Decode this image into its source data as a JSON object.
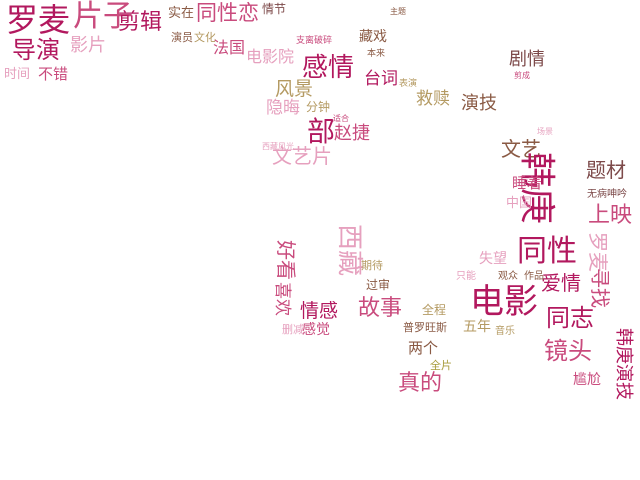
{
  "colors": {
    "magenta": "#b2185e",
    "rose": "#c94b7d",
    "pink": "#e6a0be",
    "brown": "#8a5a44",
    "tan": "#b49a62",
    "olive": "#a89c3c",
    "dark": "#7d4a4a"
  },
  "words": [
    {
      "text": "罗麦",
      "color": "magenta"
    },
    {
      "text": "片子",
      "color": "rose"
    },
    {
      "text": "剪辑",
      "color": "magenta"
    },
    {
      "text": "实在",
      "color": "brown"
    },
    {
      "text": "同性恋",
      "color": "rose"
    },
    {
      "text": "情节",
      "color": "dark"
    },
    {
      "text": "导演",
      "color": "magenta"
    },
    {
      "text": "影片",
      "color": "pink"
    },
    {
      "text": "演员",
      "color": "brown"
    },
    {
      "text": "文化",
      "color": "tan"
    },
    {
      "text": "法国",
      "color": "rose"
    },
    {
      "text": "电影院",
      "color": "pink"
    },
    {
      "text": "感情",
      "color": "magenta"
    },
    {
      "text": "藏戏",
      "color": "brown"
    },
    {
      "text": "剧情",
      "color": "dark"
    },
    {
      "text": "时间",
      "color": "pink"
    },
    {
      "text": "不错",
      "color": "rose"
    },
    {
      "text": "风景",
      "color": "tan"
    },
    {
      "text": "台词",
      "color": "magenta"
    },
    {
      "text": "救赎",
      "color": "tan"
    },
    {
      "text": "演技",
      "color": "brown"
    },
    {
      "text": "隐晦",
      "color": "pink"
    },
    {
      "text": "分钟",
      "color": "tan"
    },
    {
      "text": "部",
      "color": "magenta"
    },
    {
      "text": "赵捷",
      "color": "rose"
    },
    {
      "text": "文艺",
      "color": "brown"
    },
    {
      "text": "文艺片",
      "color": "pink"
    },
    {
      "text": "韩庚",
      "color": "magenta"
    },
    {
      "text": "题材",
      "color": "dark"
    },
    {
      "text": "睡着",
      "color": "rose"
    },
    {
      "text": "中国",
      "color": "pink"
    },
    {
      "text": "上映",
      "color": "rose"
    },
    {
      "text": "无病呻吟",
      "color": "dark"
    },
    {
      "text": "西藏",
      "color": "pink"
    },
    {
      "text": "好看",
      "color": "rose"
    },
    {
      "text": "同性",
      "color": "magenta"
    },
    {
      "text": "罗麦",
      "color": "pink"
    },
    {
      "text": "失望",
      "color": "pink"
    },
    {
      "text": "期待",
      "color": "tan"
    },
    {
      "text": "爱情",
      "color": "magenta"
    },
    {
      "text": "电影",
      "color": "magenta"
    },
    {
      "text": "寻找",
      "color": "rose"
    },
    {
      "text": "喜欢",
      "color": "rose"
    },
    {
      "text": "情感",
      "color": "magenta"
    },
    {
      "text": "故事",
      "color": "rose"
    },
    {
      "text": "过审",
      "color": "brown"
    },
    {
      "text": "全程",
      "color": "tan"
    },
    {
      "text": "感觉",
      "color": "rose"
    },
    {
      "text": "删减",
      "color": "pink"
    },
    {
      "text": "普罗旺斯",
      "color": "brown"
    },
    {
      "text": "五年",
      "color": "tan"
    },
    {
      "text": "同志",
      "color": "magenta"
    },
    {
      "text": "镜头",
      "color": "rose"
    },
    {
      "text": "两个",
      "color": "brown"
    },
    {
      "text": "尴尬",
      "color": "rose"
    },
    {
      "text": "韩庚演技",
      "color": "magenta"
    },
    {
      "text": "真的",
      "color": "rose"
    },
    {
      "text": "音乐",
      "color": "tan"
    },
    {
      "text": "观众",
      "color": "brown"
    },
    {
      "text": "作品",
      "color": "brown"
    },
    {
      "text": "只能",
      "color": "pink"
    },
    {
      "text": "全片",
      "color": "olive"
    },
    {
      "text": "主题",
      "color": "brown"
    },
    {
      "text": "支离破碎",
      "color": "rose"
    },
    {
      "text": "本来",
      "color": "brown"
    },
    {
      "text": "表演",
      "color": "tan"
    },
    {
      "text": "剪成",
      "color": "rose"
    },
    {
      "text": "西藏风光",
      "color": "pink"
    },
    {
      "text": "适合",
      "color": "rose"
    },
    {
      "text": "场景",
      "color": "pink"
    }
  ]
}
